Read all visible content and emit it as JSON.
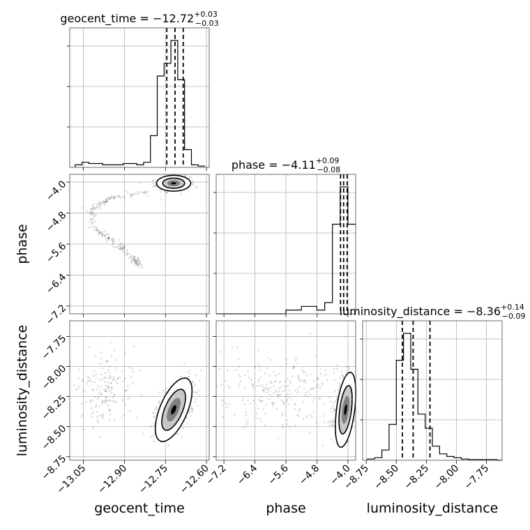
{
  "chart_data": {
    "type": "corner",
    "parameters": [
      {
        "name": "geocent_time",
        "title_prefix": "geocent_time = ",
        "median": "−12.72",
        "err_plus": "+0.03",
        "err_minus": "−0.03",
        "range": [
          -13.1,
          -12.59
        ],
        "ticks": [
          -13.05,
          -12.9,
          -12.75,
          -12.6
        ],
        "tick_labels": [
          "−13.05",
          "−12.90",
          "−12.75",
          "−12.60"
        ],
        "quantiles": [
          -12.745,
          -12.715,
          -12.685
        ],
        "hist": {
          "edges": [
            -13.08,
            -13.055,
            -13.03,
            -13.005,
            -12.98,
            -12.955,
            -12.93,
            -12.905,
            -12.88,
            -12.855,
            -12.83,
            -12.805,
            -12.78,
            -12.755,
            -12.73,
            -12.705,
            -12.68,
            -12.655,
            -12.63,
            -12.605
          ],
          "counts": [
            0.02,
            0.04,
            0.03,
            0.03,
            0.02,
            0.02,
            0.02,
            0.03,
            0.03,
            0.02,
            0.04,
            0.25,
            0.72,
            0.82,
            1.0,
            0.69,
            0.14,
            0.02,
            0.01
          ]
        }
      },
      {
        "name": "phase",
        "title_prefix": "phase = ",
        "median": "−4.11",
        "err_plus": "+0.09",
        "err_minus": "−0.08",
        "range": [
          -7.4,
          -3.8
        ],
        "ticks": [
          -7.2,
          -6.4,
          -5.6,
          -4.8,
          -4.0
        ],
        "tick_labels": [
          "−7.2",
          "−6.4",
          "−5.6",
          "−4.8",
          "−4.0"
        ],
        "quantiles": [
          -4.19,
          -4.11,
          -4.02
        ],
        "hist": {
          "edges": [
            -7.4,
            -7.2,
            -7.0,
            -6.8,
            -6.6,
            -6.4,
            -6.2,
            -6.0,
            -5.8,
            -5.6,
            -5.4,
            -5.2,
            -5.0,
            -4.8,
            -4.6,
            -4.4,
            -4.2,
            -4.0,
            -3.8
          ],
          "counts": [
            0,
            0,
            0,
            0,
            0,
            0,
            0,
            0,
            0,
            0.005,
            0.005,
            0.01,
            0.01,
            0.005,
            0.015,
            0.12,
            0.17,
            0.12
          ]
        }
      },
      {
        "name": "luminosity_distance",
        "title_prefix": "luminosity_distance = ",
        "median": "−8.36",
        "err_plus": "+0.14",
        "err_minus": "−0.09",
        "range": [
          -8.78,
          -7.62
        ],
        "ticks": [
          -8.75,
          -8.5,
          -8.25,
          -8.0,
          -7.75
        ],
        "tick_labels": [
          "−8.75",
          "−8.50",
          "−8.25",
          "−8.00",
          "−7.75"
        ],
        "quantiles": [
          -8.45,
          -8.36,
          -8.22
        ],
        "hist": {
          "edges": [
            -8.74,
            -8.68,
            -8.62,
            -8.56,
            -8.5,
            -8.44,
            -8.38,
            -8.32,
            -8.26,
            -8.2,
            -8.14,
            -8.08,
            -8.02,
            -7.96,
            -7.9,
            -7.84,
            -7.78,
            -7.72,
            -7.66,
            -7.62
          ],
          "counts": [
            0.01,
            0.02,
            0.08,
            0.28,
            0.78,
            0.99,
            0.71,
            0.36,
            0.25,
            0.11,
            0.05,
            0.03,
            0.02,
            0.01,
            0.005,
            0.005,
            0.005,
            0.005,
            0
          ]
        }
      }
    ],
    "scatter_clusters": {
      "geocent_time_vs_phase": [
        {
          "x": -12.72,
          "y": -4.05,
          "sx": 0.03,
          "sy": 0.09,
          "n": 460
        },
        {
          "curve": [
            [
              -12.82,
              -4.25
            ],
            [
              -12.95,
              -4.4
            ],
            [
              -13.02,
              -4.7
            ],
            [
              -13.01,
              -5.2
            ],
            [
              -12.93,
              -5.6
            ],
            [
              -12.87,
              -5.95
            ],
            [
              -12.84,
              -6.2
            ]
          ],
          "spread": 0.14,
          "n": 230
        }
      ],
      "geocent_time_vs_luminosity_distance": [
        {
          "x": -12.71,
          "y": -8.32,
          "sx": 0.035,
          "sy": 0.11,
          "rho": 0.55,
          "n": 560
        },
        {
          "x": -12.97,
          "y": -8.2,
          "sx": 0.055,
          "sy": 0.16,
          "rho": 0.0,
          "n": 170
        }
      ],
      "phase_vs_luminosity_distance": [
        {
          "x": -4.08,
          "y": -8.33,
          "sx": 0.13,
          "sy": 0.12,
          "rho": 0.4,
          "n": 560
        },
        {
          "x": -5.7,
          "y": -8.2,
          "sx": 0.9,
          "sy": 0.17,
          "rho": 0.0,
          "n": 260
        }
      ]
    },
    "contours": {
      "geocent_time_vs_phase": {
        "x": -12.72,
        "y": -4.03,
        "sx": 0.026,
        "sy": 0.085,
        "rho": 0.0
      },
      "geocent_time_vs_luminosity_distance": {
        "x": -12.72,
        "y": -8.36,
        "sx": 0.028,
        "sy": 0.11,
        "rho": 0.6
      },
      "phase_vs_luminosity_distance": {
        "x": -4.06,
        "y": -8.36,
        "sx": 0.11,
        "sy": 0.13,
        "rho": 0.45
      }
    },
    "grid": true,
    "colors": {
      "line": "#000000",
      "scatter": "#000000",
      "fill_dark": "#000000",
      "fill_mid": "#808080",
      "fill_light": "#c8c8c8"
    }
  }
}
